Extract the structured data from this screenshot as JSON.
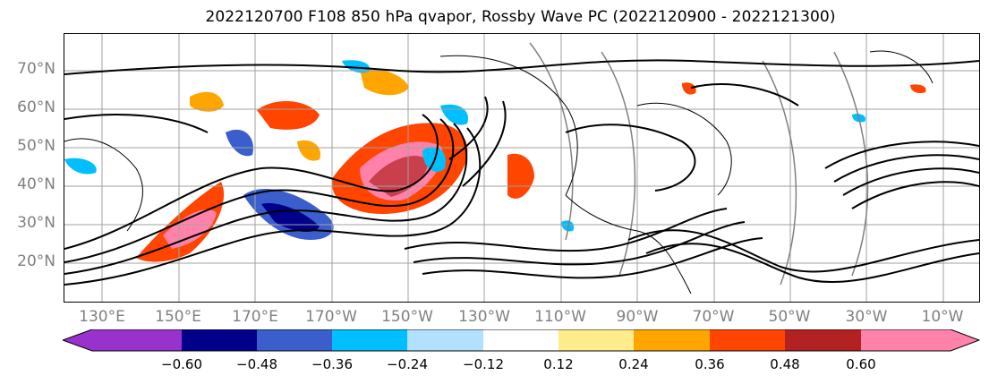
{
  "title": "2022120700 F108 850 hPa qvapor, Rossby Wave PC (2022120900 - 2022121300)",
  "lat_labels": [
    "70°N",
    "60°N",
    "50°N",
    "40°N",
    "30°N",
    "20°N"
  ],
  "lon_labels": [
    "130°E",
    "150°E",
    "170°E",
    "170°W",
    "150°W",
    "130°W",
    "110°W",
    "90°W",
    "70°W",
    "50°W",
    "30°W",
    "10°W"
  ],
  "colorbar": {
    "ticks": [
      "−0.60",
      "−0.48",
      "−0.36",
      "−0.24",
      "−0.12",
      "0.12",
      "0.24",
      "0.36",
      "0.48",
      "0.60"
    ],
    "colors": [
      "#9932cc",
      "#00008b",
      "#3a5fcd",
      "#00bfff",
      "#b0e2ff",
      "#ffffff",
      "#ffec8b",
      "#ffa500",
      "#ff4500",
      "#b22222",
      "#ff82ab"
    ]
  },
  "colors": {
    "contour": "#000000",
    "reference_contour": "#808080",
    "grid": "#a0a0a0",
    "coastline": "#000000",
    "axis_label": "#808080"
  }
}
